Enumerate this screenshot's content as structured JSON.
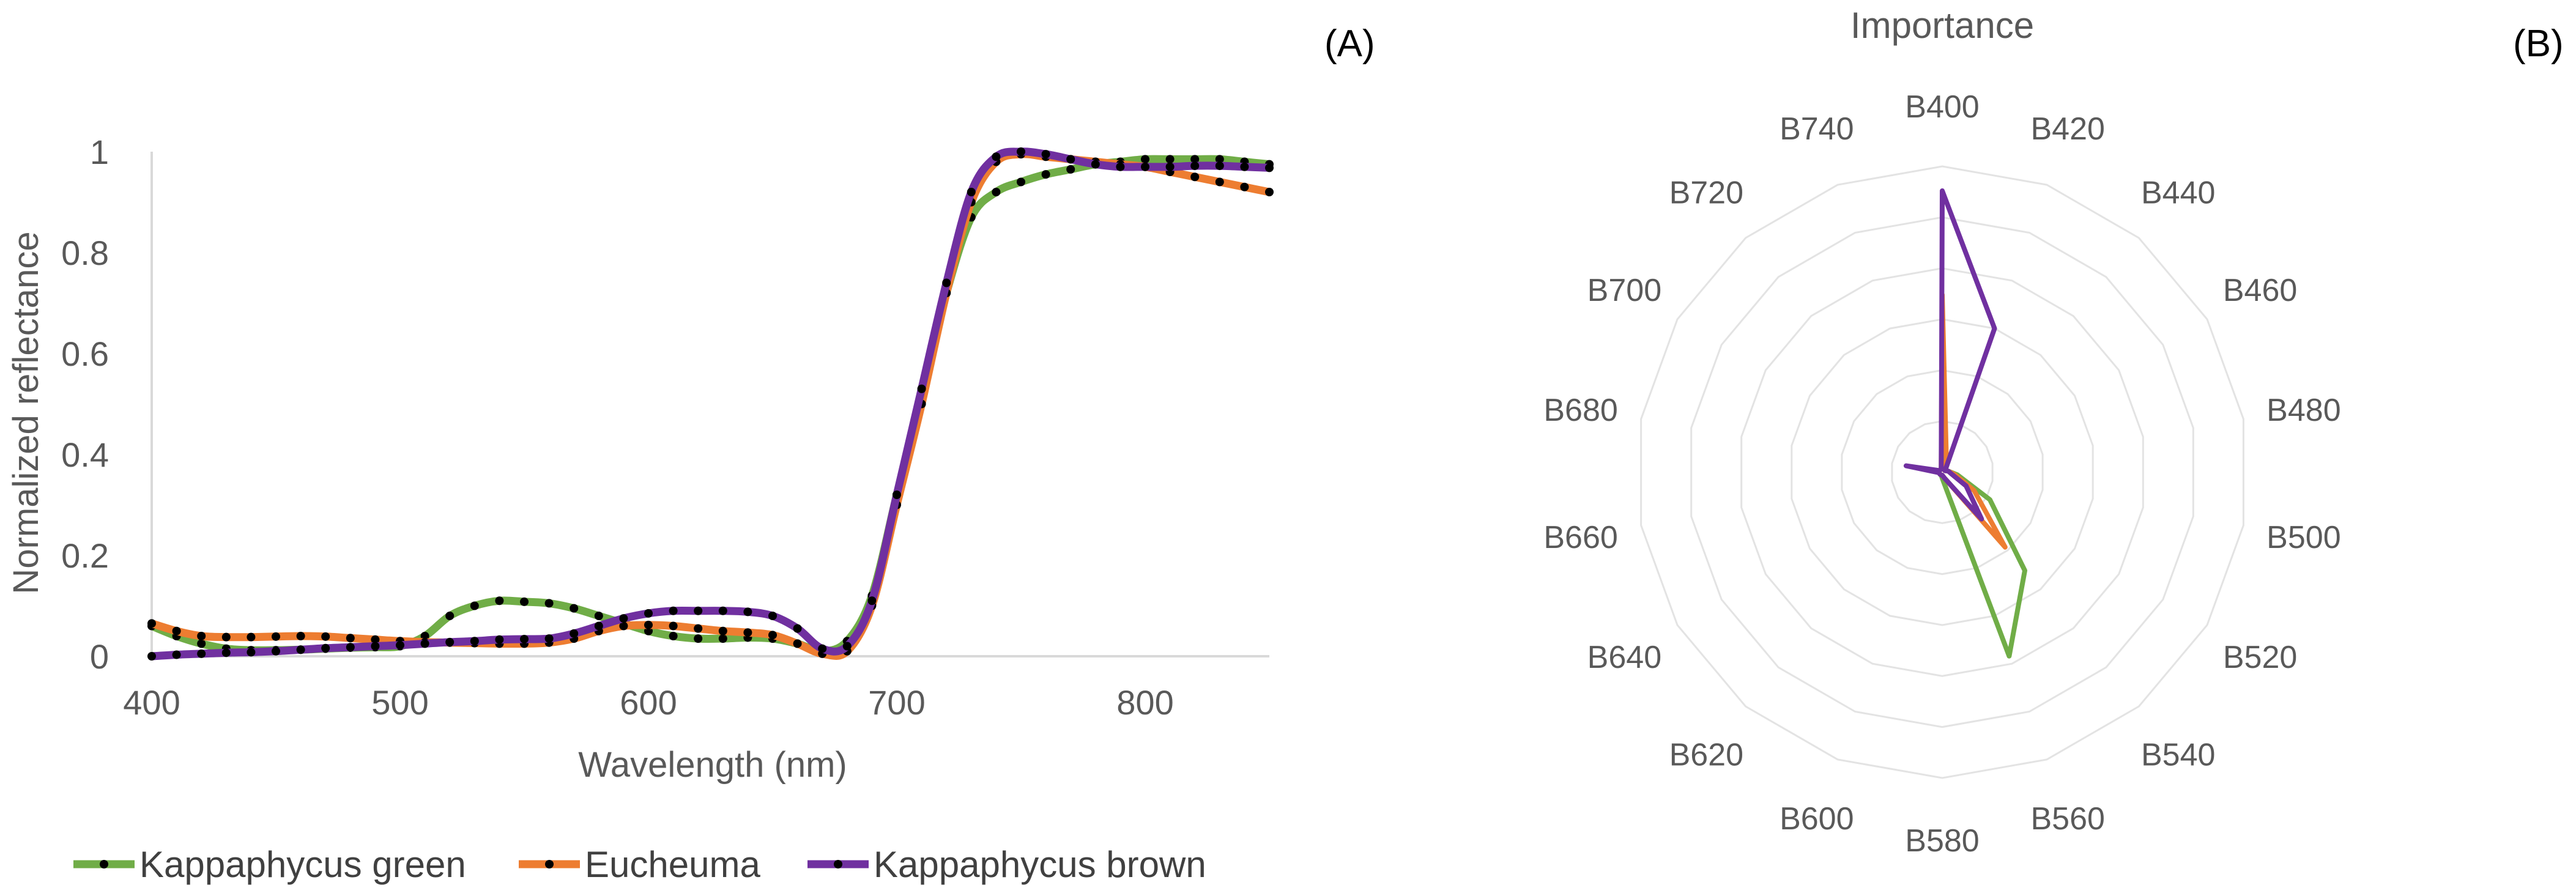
{
  "chart_data": [
    {
      "type": "line",
      "panel_label": "(A)",
      "xlabel": "Wavelength (nm)",
      "ylabel": "Normalized reflectance",
      "xlim": [
        400,
        850
      ],
      "ylim": [
        0,
        1
      ],
      "xticks": [
        400,
        500,
        600,
        700,
        800
      ],
      "yticks": [
        0,
        0.2,
        0.4,
        0.6,
        0.8,
        1
      ],
      "ytick_labels": [
        "0",
        "0.2",
        "0.4",
        "0.6",
        "0.8",
        "1"
      ],
      "grid": false,
      "legend_position": "bottom",
      "x": [
        400,
        410,
        420,
        430,
        440,
        450,
        460,
        470,
        480,
        490,
        500,
        510,
        520,
        530,
        540,
        550,
        560,
        570,
        580,
        590,
        600,
        610,
        620,
        630,
        640,
        650,
        660,
        670,
        680,
        690,
        700,
        710,
        720,
        730,
        740,
        750,
        760,
        770,
        780,
        790,
        800,
        810,
        820,
        830,
        840,
        850
      ],
      "series": [
        {
          "name": "Kappaphycus green",
          "color": "#70AD47",
          "values": [
            0.06,
            0.04,
            0.025,
            0.015,
            0.012,
            0.012,
            0.013,
            0.015,
            0.017,
            0.018,
            0.02,
            0.04,
            0.08,
            0.1,
            0.11,
            0.108,
            0.105,
            0.095,
            0.08,
            0.065,
            0.05,
            0.04,
            0.035,
            0.035,
            0.037,
            0.035,
            0.025,
            0.01,
            0.03,
            0.12,
            0.32,
            0.52,
            0.72,
            0.87,
            0.92,
            0.94,
            0.955,
            0.965,
            0.975,
            0.98,
            0.985,
            0.985,
            0.985,
            0.985,
            0.98,
            0.975
          ]
        },
        {
          "name": "Eucheuma",
          "color": "#ED7D31",
          "values": [
            0.065,
            0.05,
            0.04,
            0.038,
            0.038,
            0.039,
            0.04,
            0.039,
            0.036,
            0.033,
            0.03,
            0.028,
            0.027,
            0.026,
            0.025,
            0.025,
            0.027,
            0.035,
            0.05,
            0.06,
            0.062,
            0.06,
            0.055,
            0.05,
            0.047,
            0.042,
            0.025,
            0.005,
            0.01,
            0.1,
            0.3,
            0.5,
            0.72,
            0.9,
            0.98,
            0.995,
            0.99,
            0.985,
            0.98,
            0.975,
            0.97,
            0.96,
            0.95,
            0.94,
            0.93,
            0.92
          ]
        },
        {
          "name": "Kappaphycus brown",
          "color": "#7030A0",
          "values": [
            0.0,
            0.003,
            0.005,
            0.007,
            0.008,
            0.01,
            0.013,
            0.016,
            0.018,
            0.02,
            0.022,
            0.025,
            0.028,
            0.03,
            0.033,
            0.034,
            0.035,
            0.045,
            0.06,
            0.075,
            0.085,
            0.09,
            0.09,
            0.09,
            0.088,
            0.08,
            0.055,
            0.015,
            0.02,
            0.11,
            0.32,
            0.53,
            0.74,
            0.92,
            0.99,
            1.0,
            0.995,
            0.985,
            0.975,
            0.97,
            0.97,
            0.97,
            0.972,
            0.972,
            0.97,
            0.968
          ]
        }
      ]
    },
    {
      "type": "radar",
      "panel_label": "(B)",
      "title": "Importance",
      "rlim": [
        0,
        1
      ],
      "rings": 6,
      "legend_position": "none",
      "categories": [
        "B400",
        "B420",
        "B440",
        "B460",
        "B480",
        "B500",
        "B520",
        "B540",
        "B560",
        "B580",
        "B600",
        "B620",
        "B640",
        "B660",
        "B680",
        "B700",
        "B720",
        "B740"
      ],
      "series": [
        {
          "name": "Kappaphycus green",
          "color": "#70AD47",
          "values": [
            0.12,
            0.02,
            0.01,
            0.01,
            0.02,
            0.05,
            0.18,
            0.42,
            0.64,
            0.02,
            0.01,
            0.01,
            0.01,
            0.01,
            0.02,
            0.01,
            0.01,
            0.01
          ]
        },
        {
          "name": "Eucheuma",
          "color": "#ED7D31",
          "values": [
            0.58,
            0.04,
            0.01,
            0.01,
            0.02,
            0.04,
            0.12,
            0.32,
            0.02,
            0.01,
            0.01,
            0.01,
            0.01,
            0.01,
            0.02,
            0.01,
            0.01,
            0.01
          ]
        },
        {
          "name": "Kappaphycus brown",
          "color": "#7030A0",
          "values": [
            0.92,
            0.5,
            0.02,
            0.01,
            0.02,
            0.03,
            0.09,
            0.2,
            0.02,
            0.01,
            0.01,
            0.01,
            0.01,
            0.01,
            0.12,
            0.01,
            0.01,
            0.01
          ]
        }
      ]
    }
  ]
}
